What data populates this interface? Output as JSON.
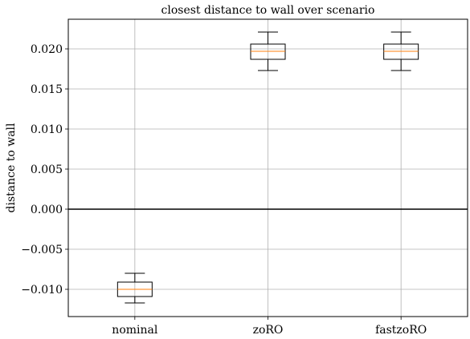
{
  "chart_data": {
    "type": "box",
    "title": "closest distance to wall over scenario",
    "xlabel": "",
    "ylabel": "distance to wall",
    "categories": [
      "nominal",
      "zoRO",
      "fastzoRO"
    ],
    "boxes": [
      {
        "category": "nominal",
        "whisker_low": -0.0117,
        "q1": -0.0109,
        "median": -0.01,
        "q3": -0.0091,
        "whisker_high": -0.008
      },
      {
        "category": "zoRO",
        "whisker_low": 0.0173,
        "q1": 0.0187,
        "median": 0.0197,
        "q3": 0.0206,
        "whisker_high": 0.0221
      },
      {
        "category": "fastzoRO",
        "whisker_low": 0.0173,
        "q1": 0.0187,
        "median": 0.0197,
        "q3": 0.0206,
        "whisker_high": 0.0221
      }
    ],
    "ylim": [
      -0.0134,
      0.0237
    ],
    "yticks": [
      -0.01,
      -0.005,
      0.0,
      0.005,
      0.01,
      0.015,
      0.02
    ],
    "ytick_labels": [
      "−0.010",
      "−0.005",
      "0.000",
      "0.005",
      "0.010",
      "0.015",
      "0.020"
    ],
    "reference_line": {
      "y": 0.0,
      "color": "#000000"
    },
    "grid": true,
    "colors": {
      "box": "#000000",
      "median": "#ff7f0e",
      "grid": "#b0b0b0"
    }
  }
}
